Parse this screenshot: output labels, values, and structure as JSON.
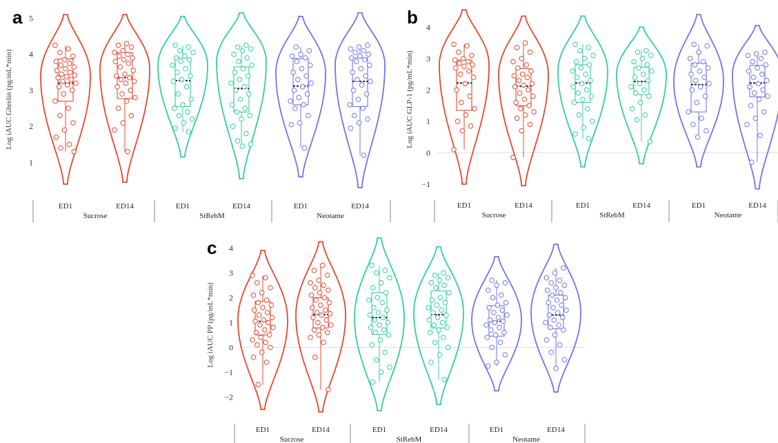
{
  "chart_data": [
    {
      "panel": "a",
      "type": "violin",
      "ylabel": "Log iAUC Ghrelin (pg/mL*min)",
      "yticks": [
        1,
        2,
        3,
        4,
        5
      ],
      "ylim": [
        0.3,
        5.2
      ],
      "zero_line": false,
      "groups": [
        "Sucrose",
        "StRebM",
        "Neotame"
      ],
      "categories": [
        "ED1",
        "ED14"
      ],
      "colors": [
        "#e8452c",
        "#2fcf9a",
        "#6f73f0"
      ],
      "violins": [
        {
          "group": "Sucrose",
          "cat": "ED1",
          "min": 0.4,
          "max": 5.1,
          "mode": 3.4,
          "q1": 2.7,
          "q3": 3.87,
          "median": 3.2,
          "points": [
            4.25,
            4.15,
            4.05,
            3.95,
            3.85,
            3.8,
            3.75,
            3.7,
            3.65,
            3.6,
            3.55,
            3.5,
            3.45,
            3.42,
            3.38,
            3.35,
            3.3,
            3.25,
            3.2,
            3.15,
            3.1,
            3.0,
            2.9,
            2.7,
            2.5,
            2.3,
            2.1,
            1.9,
            1.7,
            1.5,
            1.4,
            1.3
          ]
        },
        {
          "group": "Sucrose",
          "cat": "ED14",
          "min": 0.45,
          "max": 5.1,
          "mode": 3.6,
          "q1": 2.77,
          "q3": 4.05,
          "median": 3.35,
          "points": [
            4.3,
            4.25,
            4.2,
            4.1,
            4.05,
            4.0,
            3.95,
            3.9,
            3.85,
            3.8,
            3.75,
            3.65,
            3.55,
            3.45,
            3.4,
            3.35,
            3.3,
            3.25,
            3.2,
            3.1,
            3.0,
            2.9,
            2.8,
            2.7,
            2.5,
            2.3,
            2.1,
            1.9,
            1.3
          ]
        },
        {
          "group": "StRebM",
          "cat": "ED1",
          "min": 1.15,
          "max": 5.05,
          "mode": 3.7,
          "q1": 2.55,
          "q3": 3.9,
          "median": 3.27,
          "points": [
            4.25,
            4.2,
            4.1,
            4.05,
            3.95,
            3.9,
            3.85,
            3.8,
            3.7,
            3.6,
            3.5,
            3.4,
            3.3,
            3.25,
            3.1,
            2.9,
            2.75,
            2.6,
            2.5,
            2.4,
            2.3,
            2.2,
            2.1,
            1.95,
            1.85
          ]
        },
        {
          "group": "StRebM",
          "cat": "ED14",
          "min": 0.55,
          "max": 5.15,
          "mode": 3.8,
          "q1": 2.4,
          "q3": 3.65,
          "median": 3.05,
          "points": [
            4.25,
            4.2,
            4.15,
            4.1,
            4.0,
            3.9,
            3.8,
            3.7,
            3.6,
            3.5,
            3.4,
            3.3,
            3.2,
            3.1,
            3.0,
            2.9,
            2.75,
            2.6,
            2.5,
            2.4,
            2.3,
            2.2,
            2.0,
            1.8,
            1.6,
            1.5,
            1.45
          ]
        },
        {
          "group": "Neotame",
          "cat": "ED1",
          "min": 0.6,
          "max": 5.05,
          "mode": 3.5,
          "q1": 2.6,
          "q3": 3.88,
          "median": 3.12,
          "points": [
            4.2,
            4.1,
            4.0,
            3.95,
            3.9,
            3.8,
            3.7,
            3.6,
            3.5,
            3.4,
            3.3,
            3.2,
            3.1,
            3.0,
            2.9,
            2.8,
            2.7,
            2.6,
            2.5,
            2.3,
            2.1,
            2.05,
            1.4
          ]
        },
        {
          "group": "Neotame",
          "cat": "ED14",
          "min": 0.3,
          "max": 5.15,
          "mode": 3.7,
          "q1": 2.55,
          "q3": 3.9,
          "median": 3.25,
          "points": [
            4.25,
            4.2,
            4.15,
            4.1,
            4.05,
            4.0,
            3.95,
            3.9,
            3.85,
            3.8,
            3.7,
            3.6,
            3.5,
            3.4,
            3.3,
            3.25,
            3.15,
            3.0,
            2.9,
            2.75,
            2.6,
            2.5,
            2.3,
            2.2,
            2.1,
            1.95,
            1.2
          ]
        }
      ]
    },
    {
      "panel": "b",
      "type": "violin",
      "ylabel": "Log iAUC GLP-1 (pg/mL*min)",
      "yticks": [
        -1,
        0,
        1,
        2,
        3,
        4
      ],
      "ylim": [
        -1.2,
        4.6
      ],
      "zero_line": true,
      "groups": [
        "Sucrose",
        "StRebM",
        "Neotame"
      ],
      "categories": [
        "ED1",
        "ED14"
      ],
      "colors": [
        "#e8452c",
        "#2fcf9a",
        "#6f73f0"
      ],
      "violins": [
        {
          "group": "Sucrose",
          "cat": "ED1",
          "min": -1.0,
          "max": 4.55,
          "mode": 2.8,
          "q1": 1.35,
          "q3": 2.95,
          "median": 2.22,
          "points": [
            3.45,
            3.4,
            3.2,
            3.1,
            3.0,
            2.95,
            2.9,
            2.85,
            2.8,
            2.75,
            2.7,
            2.6,
            2.5,
            2.4,
            2.2,
            2.0,
            1.8,
            1.6,
            1.4,
            1.2,
            1.0,
            0.85,
            0.7,
            0.1
          ]
        },
        {
          "group": "Sucrose",
          "cat": "ED14",
          "min": -1.05,
          "max": 4.35,
          "mode": 2.5,
          "q1": 1.5,
          "q3": 2.68,
          "median": 2.12,
          "points": [
            3.5,
            3.35,
            3.2,
            3.0,
            2.9,
            2.8,
            2.7,
            2.6,
            2.5,
            2.45,
            2.4,
            2.3,
            2.2,
            2.15,
            2.1,
            2.0,
            1.9,
            1.8,
            1.7,
            1.6,
            1.5,
            1.4,
            1.3,
            1.2,
            1.1,
            0.9,
            0.7,
            -0.15
          ]
        },
        {
          "group": "StRebM",
          "cat": "ED1",
          "min": -0.45,
          "max": 4.35,
          "mode": 2.6,
          "q1": 1.6,
          "q3": 2.8,
          "median": 2.22,
          "points": [
            3.45,
            3.35,
            3.25,
            3.1,
            3.0,
            2.9,
            2.8,
            2.7,
            2.6,
            2.5,
            2.4,
            2.3,
            2.2,
            2.1,
            2.0,
            1.9,
            1.8,
            1.7,
            1.6,
            1.4,
            1.2,
            1.0,
            0.8,
            0.6,
            0.45
          ]
        },
        {
          "group": "StRebM",
          "cat": "ED14",
          "min": -0.35,
          "max": 4.0,
          "mode": 2.5,
          "q1": 1.85,
          "q3": 2.72,
          "median": 2.27,
          "points": [
            3.25,
            3.2,
            3.1,
            3.0,
            2.9,
            2.8,
            2.7,
            2.6,
            2.5,
            2.4,
            2.3,
            2.2,
            2.1,
            2.0,
            1.9,
            1.8,
            1.6,
            1.4,
            1.2,
            1.05,
            0.35
          ]
        },
        {
          "group": "Neotame",
          "cat": "ED1",
          "min": -0.45,
          "max": 4.4,
          "mode": 2.3,
          "q1": 1.3,
          "q3": 2.85,
          "median": 2.17,
          "points": [
            3.45,
            3.4,
            3.2,
            3.0,
            2.9,
            2.8,
            2.7,
            2.6,
            2.5,
            2.4,
            2.3,
            2.2,
            2.1,
            2.0,
            1.8,
            1.6,
            1.3,
            1.1,
            0.9,
            0.7,
            0.5
          ]
        },
        {
          "group": "Neotame",
          "cat": "ED14",
          "min": -1.15,
          "max": 4.05,
          "mode": 2.5,
          "q1": 1.78,
          "q3": 2.78,
          "median": 2.22,
          "points": [
            3.2,
            3.15,
            3.1,
            3.0,
            2.9,
            2.8,
            2.7,
            2.6,
            2.5,
            2.4,
            2.3,
            2.2,
            2.1,
            2.0,
            1.9,
            1.8,
            1.7,
            1.5,
            1.3,
            1.1,
            0.9,
            0.55,
            -0.3
          ]
        }
      ]
    },
    {
      "panel": "c",
      "type": "violin",
      "ylabel": "Log iAUC PP (pg/mL*min)",
      "yticks": [
        -2,
        -1,
        0,
        1,
        2,
        3,
        4
      ],
      "ylim": [
        -2.6,
        4.4
      ],
      "zero_line": true,
      "groups": [
        "Sucrose",
        "StRebM",
        "Neotame"
      ],
      "categories": [
        "ED1",
        "ED14"
      ],
      "colors": [
        "#e8452c",
        "#2fcf9a",
        "#6f73f0"
      ],
      "violins": [
        {
          "group": "Sucrose",
          "cat": "ED1",
          "min": -2.5,
          "max": 3.9,
          "mode": 1.1,
          "q1": 0.5,
          "q3": 1.85,
          "median": 1.05,
          "points": [
            2.9,
            2.8,
            2.6,
            2.4,
            2.2,
            2.1,
            1.9,
            1.8,
            1.7,
            1.6,
            1.5,
            1.4,
            1.3,
            1.2,
            1.1,
            1.05,
            1.0,
            0.9,
            0.8,
            0.7,
            0.6,
            0.5,
            0.4,
            0.3,
            0.2,
            0.1,
            0.0,
            -0.2,
            -0.4,
            -0.6,
            -1.5
          ]
        },
        {
          "group": "Sucrose",
          "cat": "ED14",
          "min": -2.6,
          "max": 4.25,
          "mode": 1.3,
          "q1": 0.78,
          "q3": 2.0,
          "median": 1.32,
          "points": [
            3.3,
            3.1,
            2.9,
            2.7,
            2.6,
            2.5,
            2.4,
            2.3,
            2.2,
            2.1,
            2.0,
            1.9,
            1.8,
            1.7,
            1.6,
            1.5,
            1.4,
            1.35,
            1.3,
            1.2,
            1.1,
            1.0,
            0.9,
            0.8,
            0.7,
            0.6,
            0.5,
            0.4,
            0.2,
            -0.4,
            -1.7
          ]
        },
        {
          "group": "StRebM",
          "cat": "ED1",
          "min": -2.55,
          "max": 4.4,
          "mode": 1.2,
          "q1": 0.52,
          "q3": 2.2,
          "median": 1.2,
          "points": [
            3.3,
            3.1,
            3.0,
            2.8,
            2.6,
            2.4,
            2.2,
            2.0,
            1.9,
            1.8,
            1.6,
            1.5,
            1.4,
            1.3,
            1.2,
            1.1,
            1.0,
            0.9,
            0.8,
            0.7,
            0.6,
            0.5,
            0.3,
            0.1,
            -0.2,
            -0.5,
            -0.8,
            -1.0,
            -1.4
          ]
        },
        {
          "group": "StRebM",
          "cat": "ED14",
          "min": -2.3,
          "max": 4.05,
          "mode": 1.4,
          "q1": 0.78,
          "q3": 2.27,
          "median": 1.32,
          "points": [
            3.0,
            2.9,
            2.8,
            2.7,
            2.6,
            2.5,
            2.4,
            2.2,
            2.0,
            1.9,
            1.8,
            1.7,
            1.6,
            1.5,
            1.4,
            1.3,
            1.2,
            1.1,
            1.0,
            0.9,
            0.8,
            0.7,
            0.6,
            0.4,
            0.2,
            0.0,
            -0.3,
            -0.6,
            -1.3
          ]
        },
        {
          "group": "Neotame",
          "cat": "ED1",
          "min": -1.75,
          "max": 3.65,
          "mode": 1.1,
          "q1": 0.45,
          "q3": 1.68,
          "median": 1.05,
          "points": [
            2.7,
            2.6,
            2.5,
            2.3,
            2.1,
            2.0,
            1.8,
            1.7,
            1.6,
            1.5,
            1.4,
            1.3,
            1.2,
            1.1,
            1.05,
            1.0,
            0.9,
            0.8,
            0.7,
            0.6,
            0.5,
            0.4,
            0.2,
            0.0,
            -0.3,
            -0.6,
            -0.75
          ]
        },
        {
          "group": "Neotame",
          "cat": "ED14",
          "min": -1.8,
          "max": 4.15,
          "mode": 1.4,
          "q1": 0.75,
          "q3": 2.1,
          "median": 1.3,
          "points": [
            3.2,
            3.0,
            2.8,
            2.7,
            2.6,
            2.5,
            2.4,
            2.3,
            2.2,
            2.1,
            2.0,
            1.9,
            1.8,
            1.7,
            1.6,
            1.5,
            1.4,
            1.3,
            1.2,
            1.1,
            1.0,
            0.9,
            0.8,
            0.7,
            0.5,
            0.3,
            0.1,
            -0.2,
            -0.5,
            -0.85
          ]
        }
      ]
    }
  ]
}
